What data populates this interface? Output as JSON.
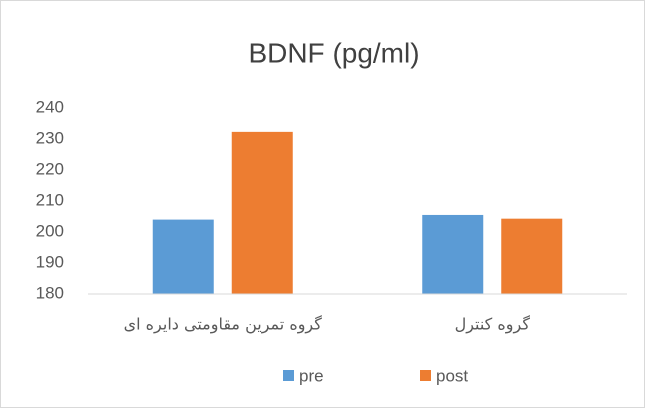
{
  "chart_data": {
    "type": "bar",
    "title": "BDNF (pg/ml)",
    "categories": [
      "گروه تمرین مقاومتی دایره ای",
      "گروه کنترل"
    ],
    "series": [
      {
        "name": "pre",
        "color": "#5b9bd5",
        "values": [
          204,
          205.5
        ]
      },
      {
        "name": "post",
        "color": "#ed7d31",
        "values": [
          232.3,
          204.3
        ]
      }
    ],
    "ylim": [
      180,
      240
    ],
    "yticks": [
      180,
      190,
      200,
      210,
      220,
      230,
      240
    ],
    "grid": false,
    "legend": "bottom"
  }
}
